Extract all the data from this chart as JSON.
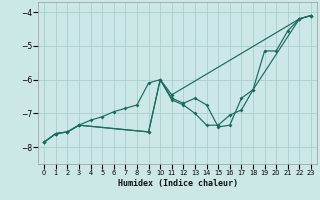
{
  "xlabel": "Humidex (Indice chaleur)",
  "xlim": [
    -0.5,
    23.5
  ],
  "ylim": [
    -8.5,
    -3.7
  ],
  "xticks": [
    0,
    1,
    2,
    3,
    4,
    5,
    6,
    7,
    8,
    9,
    10,
    11,
    12,
    13,
    14,
    15,
    16,
    17,
    18,
    19,
    20,
    21,
    22,
    23
  ],
  "yticks": [
    -8,
    -7,
    -6,
    -5,
    -4
  ],
  "bg_color": "#cce8e6",
  "grid_color": "#aacfcd",
  "line_color": "#1a6b5a",
  "series1_x": [
    0,
    1,
    2,
    3,
    4,
    5,
    6,
    7,
    8,
    9,
    10,
    11,
    12,
    13,
    14,
    15,
    16,
    17,
    18,
    19,
    20,
    21,
    22,
    23
  ],
  "series1_y": [
    -7.85,
    -7.6,
    -7.55,
    -7.35,
    -7.2,
    -7.1,
    -6.95,
    -6.85,
    -6.75,
    -6.1,
    -6.0,
    -6.55,
    -6.7,
    -6.55,
    -6.75,
    -7.4,
    -7.35,
    -6.55,
    -6.3,
    -5.15,
    -5.15,
    -4.55,
    -4.2,
    -4.1
  ],
  "series2_x": [
    0,
    1,
    2,
    3,
    9,
    10,
    11,
    22,
    23
  ],
  "series2_y": [
    -7.85,
    -7.6,
    -7.55,
    -7.35,
    -7.55,
    -6.0,
    -6.45,
    -4.2,
    -4.1
  ],
  "series3_x": [
    0,
    1,
    2,
    3,
    9,
    10,
    11,
    12,
    13,
    14,
    15,
    16,
    17,
    18,
    22,
    23
  ],
  "series3_y": [
    -7.85,
    -7.6,
    -7.55,
    -7.35,
    -7.55,
    -6.0,
    -6.6,
    -6.75,
    -7.0,
    -7.35,
    -7.35,
    -7.05,
    -6.9,
    -6.3,
    -4.2,
    -4.1
  ]
}
